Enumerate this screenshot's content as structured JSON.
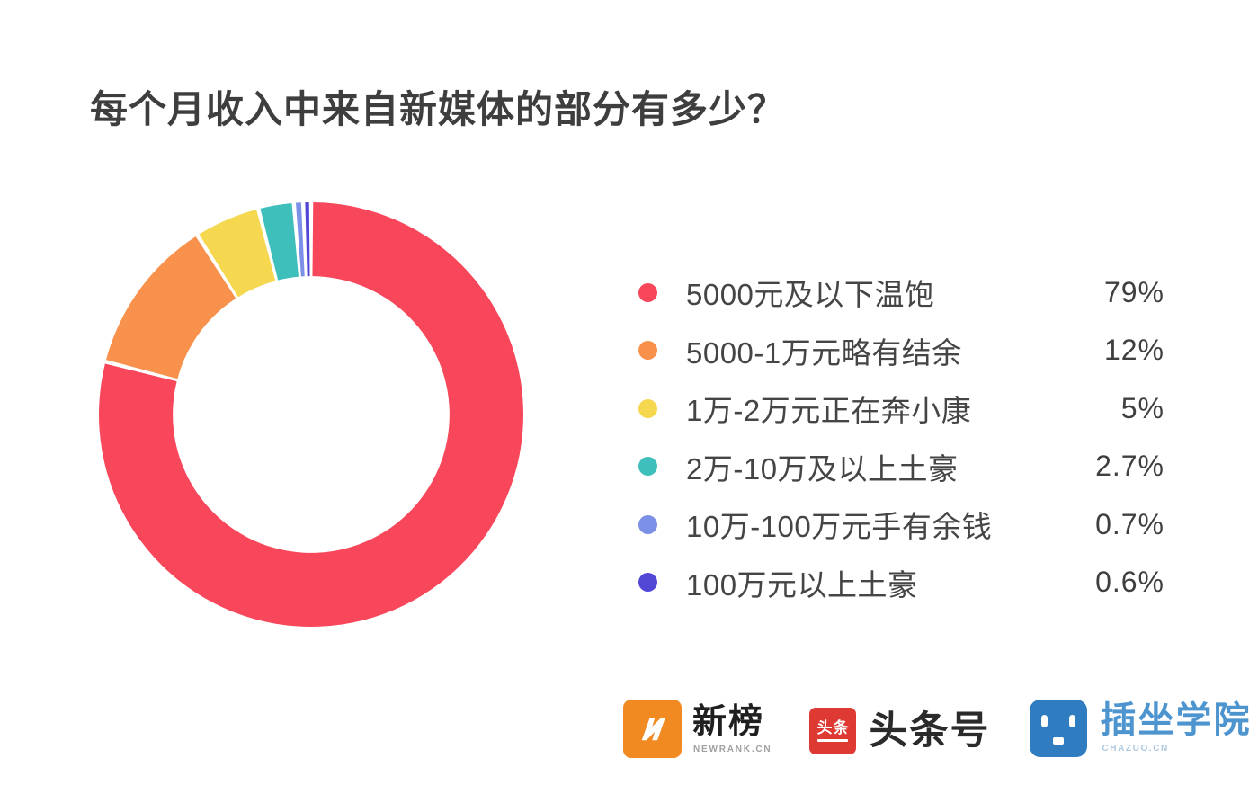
{
  "page": {
    "background": "#ffffff"
  },
  "title": "每个月收入中来自新媒体的部分有多少？",
  "chart_data": {
    "type": "pie",
    "subtype": "donut",
    "title": "每个月收入中来自新媒体的部分有多少？",
    "start_angle_deg": 0,
    "direction": "clockwise",
    "inner_radius_ratio": 0.652,
    "slice_gap_color": "#ffffff",
    "legend_position": "right",
    "items": [
      {
        "label": "5000元及以下温饱",
        "value": 79,
        "display": "79%",
        "color": "#F8465A"
      },
      {
        "label": "5000-1万元略有结余",
        "value": 12,
        "display": "12%",
        "color": "#F8914B"
      },
      {
        "label": "1万-2万元正在奔小康",
        "value": 5,
        "display": "5%",
        "color": "#F6D850"
      },
      {
        "label": "2万-10万及以上土豪",
        "value": 2.7,
        "display": "2.7%",
        "color": "#3FBFBC"
      },
      {
        "label": "10万-100万元手有余钱",
        "value": 0.7,
        "display": "0.7%",
        "color": "#7B90E6"
      },
      {
        "label": "100万元以上土豪",
        "value": 0.6,
        "display": "0.6%",
        "color": "#5247D5"
      }
    ]
  },
  "footer": {
    "logos": [
      {
        "name": "新榜",
        "subtext": "NEWRANK.CN",
        "icon": "newrank-n-icon",
        "icon_color": "#F18A21"
      },
      {
        "name": "头条号",
        "icon_text": "头条",
        "icon": "toutiao-icon",
        "icon_color": "#DE3A33"
      },
      {
        "name": "插坐学院",
        "subtext": "CHAZUO.CN",
        "icon": "chazuo-robot-icon",
        "icon_color": "#2F7DC0"
      }
    ]
  }
}
